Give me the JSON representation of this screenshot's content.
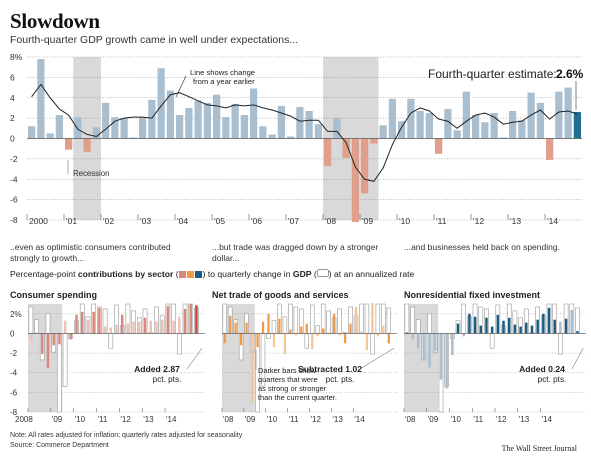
{
  "title": "Slowdown",
  "subtitle": "Fourth-quarter GDP growth came in well under expectations...",
  "colors": {
    "gdp_bar": "#a9bfcf",
    "gdp_bar_negative": "#e19e8a",
    "latest": "#1f6f95",
    "recession": "#d9d9d9",
    "consumer_dark": "#d9887a",
    "consumer_latest": "#c94438",
    "trade_dark": "#f29a46",
    "invest_dark": "#1b5c83",
    "invest_light": "#a9bfcf",
    "trend_line": "#222222"
  },
  "main_chart": {
    "estimate_label": "Fourth-quarter estimate:",
    "estimate_value": "2.6%",
    "line_annotation_1": "Line shows change",
    "line_annotation_2": "from a year earlier",
    "recession_label": "Recession"
  },
  "notes": {
    "consumer": [
      "..even as optimistic consumers contributed",
      "strongly to growth..."
    ],
    "trade": [
      "...but trade was dragged down by a stronger",
      "dollar..."
    ],
    "invest": [
      "...and businesses held back on spending."
    ]
  },
  "legend": {
    "prefix": "Percentage-point",
    "bold": "contributions by sector",
    "middle": "to quarterly change in",
    "gdp": "GDP",
    "suffix": "at an annualized rate"
  },
  "panels": {
    "consumer": {
      "title": "Consumer spending",
      "annotation": [
        "Added 2.87",
        "pct. pts."
      ]
    },
    "trade": {
      "title": "Net trade of goods and services",
      "annotation": [
        "Subtracted 1.02",
        "pct. pts."
      ],
      "darker_note": [
        "Darker bars show",
        "quarters that were",
        "as strong or stronger",
        "than the current quarter."
      ]
    },
    "invest": {
      "title": "Nonresidential fixed investment",
      "annotation": [
        "Added 0.24",
        "pct. pts."
      ]
    }
  },
  "footer": {
    "note": "Note: All rates adjusted for inflation; quarterly rates adjusted for seasonality",
    "source": "Source: Commerce Department",
    "credit": "The Wall Street Journal"
  },
  "chart_data": [
    {
      "type": "bar",
      "title": "Fourth-quarter GDP growth came in well under expectations...",
      "ylim": [
        -8,
        8
      ],
      "yticks": [
        "8%",
        "6",
        "4",
        "2",
        "0",
        "-2",
        "-4",
        "-6",
        "-8"
      ],
      "xtick_labels": [
        "2000",
        "'01",
        "'02",
        "'03",
        "'04",
        "'05",
        "'06",
        "'07",
        "'08",
        "'09",
        "'10",
        "'11",
        "'12",
        "'13",
        "'14"
      ],
      "x_start": "2000Q1",
      "recessions": [
        [
          5,
          8
        ],
        [
          32,
          38
        ]
      ],
      "values": [
        1.2,
        7.8,
        0.5,
        2.3,
        -1.1,
        2.1,
        -1.3,
        1.1,
        3.5,
        2.1,
        2.0,
        0.1,
        2.1,
        3.8,
        6.9,
        4.7,
        2.3,
        3.0,
        3.7,
        3.5,
        4.3,
        2.1,
        3.4,
        2.3,
        4.9,
        1.2,
        0.4,
        3.2,
        0.2,
        3.1,
        2.7,
        1.4,
        -2.7,
        2.0,
        -1.9,
        -8.2,
        -5.4,
        -0.5,
        1.3,
        3.9,
        1.7,
        3.9,
        2.7,
        2.5,
        -1.5,
        2.9,
        0.8,
        4.6,
        2.3,
        1.6,
        2.5,
        0.1,
        2.7,
        1.8,
        4.5,
        3.5,
        -2.1,
        4.6,
        5.0,
        2.6
      ],
      "line_yoy": [
        4.1,
        5.3,
        4.0,
        2.9,
        2.3,
        0.9,
        0.4,
        0.2,
        0.9,
        1.7,
        2.0,
        2.1,
        2.1,
        2.0,
        3.2,
        4.3,
        4.5,
        4.1,
        3.7,
        3.3,
        3.2,
        3.0,
        3.3,
        3.2,
        3.3,
        3.0,
        2.8,
        2.5,
        2.2,
        1.7,
        1.8,
        1.8,
        0.7,
        0.7,
        -0.4,
        -2.8,
        -4.0,
        -4.2,
        -2.9,
        -0.6,
        1.1,
        2.5,
        3.0,
        2.7,
        1.9,
        1.7,
        1.0,
        1.7,
        2.3,
        2.5,
        2.1,
        1.4,
        1.6,
        1.7,
        2.3,
        2.8,
        1.9,
        2.6,
        2.7,
        2.4
      ]
    },
    {
      "type": "bar",
      "title": "Consumer spending",
      "ylim": [
        -8,
        3
      ],
      "yticks": [
        "2%",
        "0",
        "-2",
        "-4",
        "-6",
        "-8"
      ],
      "xtick_labels": [
        "2008",
        "'09",
        "'10",
        "'11",
        "'12",
        "'13",
        "'14"
      ],
      "values": [
        -0.8,
        0.1,
        -2.1,
        -3.5,
        -1.2,
        -1.1,
        1.3,
        -0.6,
        1.9,
        2.2,
        1.4,
        2.2,
        2.6,
        0.7,
        0.6,
        0.9,
        1.9,
        1.0,
        1.2,
        1.2,
        1.6,
        1.3,
        1.2,
        1.4,
        2.8,
        1.3,
        1.7,
        2.5,
        3.0,
        2.87
      ],
      "darker": [
        false,
        false,
        true,
        true,
        true,
        true,
        false,
        true,
        true,
        true,
        false,
        true,
        true,
        false,
        false,
        false,
        true,
        false,
        false,
        false,
        true,
        false,
        false,
        false,
        true,
        false,
        false,
        true,
        true,
        true
      ],
      "annotation": "Added 2.87 pct. pts."
    },
    {
      "type": "bar",
      "title": "Net trade of goods and services",
      "ylim": [
        -8,
        3
      ],
      "yticks": [
        "2%",
        "0",
        "-2",
        "-4",
        "-6",
        "-8"
      ],
      "xtick_labels": [
        "'08",
        "'09",
        "'10",
        "'11",
        "'12",
        "'13",
        "'14"
      ],
      "values": [
        -1.0,
        1.8,
        1.1,
        -1.2,
        1.1,
        -7.0,
        -1.4,
        1.2,
        2.0,
        -1.4,
        1.5,
        -2.1,
        0.4,
        -0.2,
        0.7,
        1.0,
        -1.6,
        -0.3,
        0.5,
        -0.1,
        2.0,
        -0.2,
        -1.0,
        1.0,
        2.7,
        0.2,
        -1.7,
        3.1,
        -0.3,
        0.8,
        -1.02
      ],
      "darker": [
        true,
        true,
        true,
        true,
        true,
        false,
        true,
        true,
        true,
        false,
        true,
        false,
        true,
        false,
        true,
        true,
        false,
        false,
        true,
        false,
        true,
        false,
        true,
        true,
        false,
        false,
        false,
        false,
        false,
        false,
        true
      ],
      "annotation": "Subtracted 1.02 pct. pts."
    },
    {
      "type": "bar",
      "title": "Nonresidential fixed investment",
      "ylim": [
        -8,
        3
      ],
      "yticks": [
        "2%",
        "0",
        "-2",
        "-4",
        "-6",
        "-8"
      ],
      "xtick_labels": [
        "'08",
        "'09",
        "'10",
        "'11",
        "'12",
        "'13",
        "'14"
      ],
      "values": [
        0.1,
        -0.6,
        -1.5,
        -2.7,
        -3.5,
        -1.8,
        -4.7,
        -5.6,
        -2.2,
        1.0,
        -0.3,
        2.0,
        1.7,
        0.8,
        1.6,
        0.7,
        1.9,
        1.3,
        1.6,
        0.9,
        0.7,
        1.1,
        0.8,
        1.4,
        2.0,
        2.6,
        1.4,
        1.2,
        1.5,
        2.4,
        0.24
      ],
      "darker": [
        true,
        false,
        false,
        false,
        false,
        false,
        false,
        false,
        false,
        true,
        false,
        true,
        true,
        true,
        true,
        true,
        true,
        true,
        true,
        true,
        true,
        true,
        true,
        true,
        true,
        true,
        true,
        false,
        true,
        false,
        true
      ],
      "annotation": "Added 0.24 pct. pts."
    }
  ]
}
